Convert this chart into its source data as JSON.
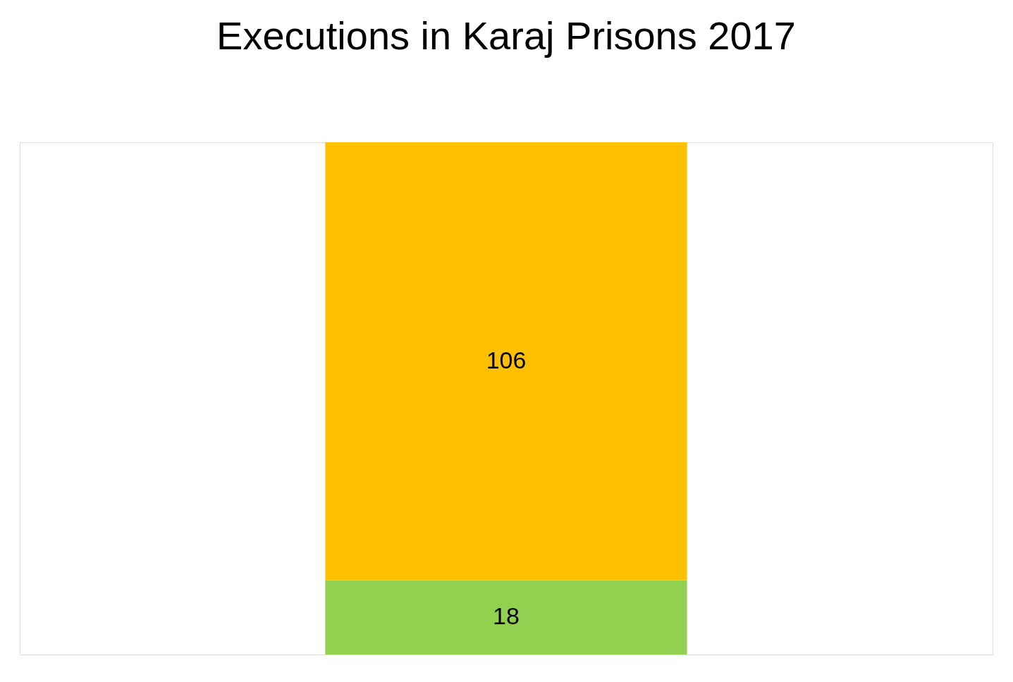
{
  "chart_data": {
    "type": "bar",
    "title": "Executions in Karaj Prisons 2017",
    "categories": [
      null
    ],
    "stacked": true,
    "data_labels": true,
    "series": [
      {
        "color": "#92d050",
        "values": [
          18
        ]
      },
      {
        "color": "#ffc000",
        "values": [
          106
        ]
      }
    ]
  }
}
